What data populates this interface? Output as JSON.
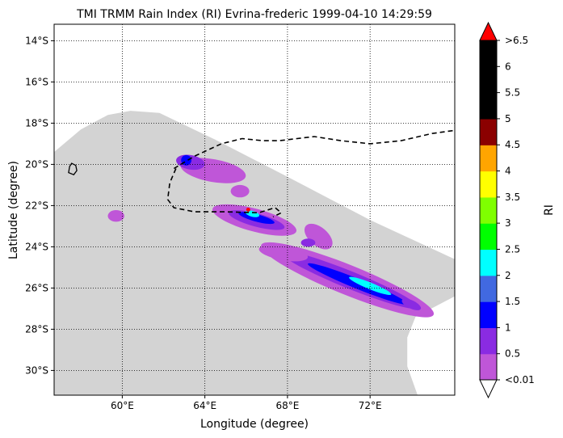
{
  "chart_data": {
    "type": "heatmap",
    "title": "TMI TRMM Rain Index (RI) Evrina-frederic 1999-04-10 14:29:59",
    "xlabel": "Longitude (degree)",
    "ylabel": "Latitude (degree)",
    "colorbar_label": "RI",
    "xlim": [
      56.7,
      76.1
    ],
    "ylim": [
      -31.2,
      -13.2
    ],
    "grid": true,
    "x_ticks": [
      {
        "value": 60,
        "label": "60°E"
      },
      {
        "value": 64,
        "label": "64°E"
      },
      {
        "value": 68,
        "label": "68°E"
      },
      {
        "value": 72,
        "label": "72°E"
      }
    ],
    "y_ticks": [
      {
        "value": -14,
        "label": "14°S"
      },
      {
        "value": -16,
        "label": "16°S"
      },
      {
        "value": -18,
        "label": "18°S"
      },
      {
        "value": -20,
        "label": "20°S"
      },
      {
        "value": -22,
        "label": "22°S"
      },
      {
        "value": -24,
        "label": "24°S"
      },
      {
        "value": -26,
        "label": "26°S"
      },
      {
        "value": -28,
        "label": "28°S"
      },
      {
        "value": -30,
        "label": "30°S"
      }
    ],
    "colorbar": {
      "colors": [
        "#bf56d8",
        "#8a2be2",
        "#0000ff",
        "#4169e1",
        "#00ffff",
        "#00ff00",
        "#7fff00",
        "#ffff00",
        "#ffa500",
        "#8b0000",
        "#000000",
        "#000000",
        "#000000"
      ],
      "over_color": "#ff0000",
      "under_color": "#ffffff",
      "labels": [
        "<0.01",
        "0.5",
        "1",
        "1.5",
        "2",
        "2.5",
        "3",
        "3.5",
        "4",
        "4.5",
        "5",
        "5.5",
        "6",
        ">6.5"
      ]
    },
    "swath_color": "#d3d3d3",
    "track": [
      [
        62.5,
        -20.2
      ],
      [
        63.5,
        -19.6
      ],
      [
        64.8,
        -19.0
      ],
      [
        65.8,
        -18.75
      ],
      [
        66.8,
        -18.85
      ],
      [
        67.6,
        -18.85
      ],
      [
        69.3,
        -18.65
      ],
      [
        70.6,
        -18.85
      ],
      [
        72.0,
        -19.0
      ],
      [
        73.5,
        -18.85
      ],
      [
        75.0,
        -18.5
      ],
      [
        76.1,
        -18.35
      ]
    ],
    "track2": [
      [
        62.6,
        -20.2
      ],
      [
        62.3,
        -20.9
      ],
      [
        62.2,
        -21.7
      ],
      [
        62.5,
        -22.1
      ],
      [
        63.5,
        -22.3
      ],
      [
        65.0,
        -22.3
      ],
      [
        66.6,
        -22.35
      ],
      [
        67.4,
        -22.1
      ],
      [
        67.7,
        -22.35
      ],
      [
        67.3,
        -22.55
      ]
    ],
    "storm_center": [
      66.1,
      -22.2
    ],
    "island_outline": [
      [
        57.55,
        -19.95
      ],
      [
        57.75,
        -20.05
      ],
      [
        57.8,
        -20.3
      ],
      [
        57.65,
        -20.5
      ],
      [
        57.4,
        -20.4
      ],
      [
        57.45,
        -20.1
      ]
    ],
    "rain_bands": [
      {
        "center": [
          70.9,
          -25.6
        ],
        "rx": 4.5,
        "ry": 0.72,
        "angle": 22,
        "ri": 0.25
      },
      {
        "center": [
          71.0,
          -25.6
        ],
        "rx": 3.6,
        "ry": 0.42,
        "angle": 22,
        "ri": 0.75
      },
      {
        "center": [
          71.4,
          -25.8
        ],
        "rx": 2.6,
        "ry": 0.24,
        "angle": 22,
        "ri": 1.25
      },
      {
        "center": [
          72.0,
          -25.9
        ],
        "rx": 1.1,
        "ry": 0.16,
        "angle": 22,
        "ri": 2.0
      },
      {
        "center": [
          66.4,
          -22.7
        ],
        "rx": 2.1,
        "ry": 0.55,
        "angle": 15,
        "ri": 0.25
      },
      {
        "center": [
          66.5,
          -22.7
        ],
        "rx": 1.4,
        "ry": 0.32,
        "angle": 15,
        "ri": 0.75
      },
      {
        "center": [
          66.5,
          -22.6
        ],
        "rx": 0.9,
        "ry": 0.18,
        "angle": 15,
        "ri": 1.25
      },
      {
        "center": [
          66.3,
          -22.4
        ],
        "rx": 0.35,
        "ry": 0.14,
        "angle": 15,
        "ri": 2.25
      },
      {
        "center": [
          64.4,
          -20.3
        ],
        "rx": 1.6,
        "ry": 0.55,
        "angle": 10,
        "ri": 0.25
      },
      {
        "center": [
          63.3,
          -19.9
        ],
        "rx": 0.7,
        "ry": 0.35,
        "angle": 10,
        "ri": 0.75
      },
      {
        "center": [
          63.1,
          -19.8
        ],
        "rx": 0.25,
        "ry": 0.25,
        "angle": 0,
        "ri": 1.25
      },
      {
        "center": [
          69.5,
          -23.5
        ],
        "rx": 0.8,
        "ry": 0.45,
        "angle": 40,
        "ri": 0.25
      },
      {
        "center": [
          67.8,
          -24.3
        ],
        "rx": 1.2,
        "ry": 0.35,
        "angle": 10,
        "ri": 0.25
      },
      {
        "center": [
          65.7,
          -21.3
        ],
        "rx": 0.45,
        "ry": 0.3,
        "angle": 0,
        "ri": 0.25
      },
      {
        "center": [
          59.7,
          -22.5
        ],
        "rx": 0.4,
        "ry": 0.28,
        "angle": 0,
        "ri": 0.25
      },
      {
        "center": [
          74.0,
          -26.8
        ],
        "rx": 0.5,
        "ry": 0.2,
        "angle": 25,
        "ri": 0.75
      },
      {
        "center": [
          69.0,
          -23.8
        ],
        "rx": 0.35,
        "ry": 0.2,
        "angle": 0,
        "ri": 0.75
      }
    ]
  }
}
